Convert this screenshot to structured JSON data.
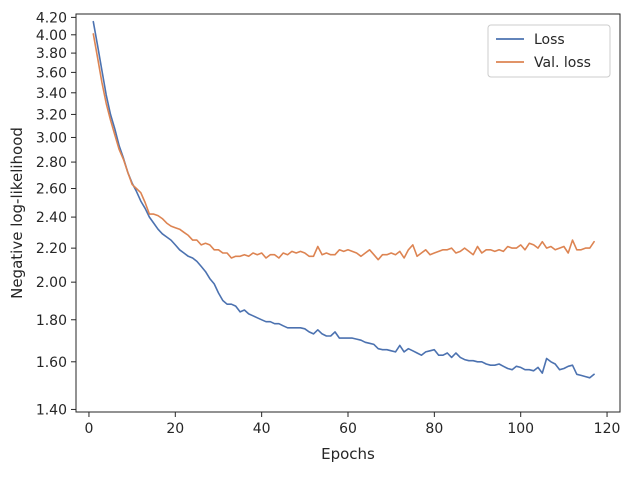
{
  "chart_data": {
    "type": "line",
    "title": "",
    "xlabel": "Epochs",
    "ylabel": "Negative log-likelihood",
    "xlim": [
      -3,
      123
    ],
    "ylim": [
      1.39,
      4.24
    ],
    "y_scale": "log",
    "grid": false,
    "legend_position": "top-right",
    "xticks": [
      0,
      20,
      40,
      60,
      80,
      100,
      120
    ],
    "xtick_labels": [
      "0",
      "20",
      "40",
      "60",
      "80",
      "100",
      "120"
    ],
    "yticks": [
      1.4,
      1.6,
      1.8,
      2.0,
      2.2,
      2.4,
      2.6,
      2.8,
      3.0,
      3.2,
      3.4,
      3.6,
      3.8,
      4.0,
      4.2
    ],
    "ytick_labels": [
      "1.40",
      "1.60",
      "1.80",
      "2.00",
      "2.20",
      "2.40",
      "2.60",
      "2.80",
      "3.00",
      "3.20",
      "3.40",
      "3.60",
      "3.80",
      "4.00",
      "4.20"
    ],
    "x": [
      1,
      2,
      3,
      4,
      5,
      6,
      7,
      8,
      9,
      10,
      11,
      12,
      13,
      14,
      15,
      16,
      17,
      18,
      19,
      20,
      21,
      22,
      23,
      24,
      25,
      26,
      27,
      28,
      29,
      30,
      31,
      32,
      33,
      34,
      35,
      36,
      37,
      38,
      39,
      40,
      41,
      42,
      43,
      44,
      45,
      46,
      47,
      48,
      49,
      50,
      51,
      52,
      53,
      54,
      55,
      56,
      57,
      58,
      59,
      60,
      61,
      62,
      63,
      64,
      65,
      66,
      67,
      68,
      69,
      70,
      71,
      72,
      73,
      74,
      75,
      76,
      77,
      78,
      79,
      80,
      81,
      82,
      83,
      84,
      85,
      86,
      87,
      88,
      89,
      90,
      91,
      92,
      93,
      94,
      95,
      96,
      97,
      98,
      99,
      100,
      101,
      102,
      103,
      104,
      105,
      106,
      107,
      108,
      109,
      110,
      111,
      112,
      113,
      114,
      115,
      116,
      117
    ],
    "series": [
      {
        "name": "Loss",
        "color": "#4c72b0",
        "values": [
          4.15,
          3.88,
          3.62,
          3.38,
          3.2,
          3.07,
          2.93,
          2.83,
          2.72,
          2.64,
          2.58,
          2.51,
          2.46,
          2.4,
          2.36,
          2.32,
          2.29,
          2.27,
          2.25,
          2.22,
          2.19,
          2.17,
          2.15,
          2.14,
          2.12,
          2.09,
          2.06,
          2.02,
          1.99,
          1.94,
          1.9,
          1.88,
          1.88,
          1.87,
          1.84,
          1.85,
          1.83,
          1.82,
          1.81,
          1.8,
          1.79,
          1.79,
          1.78,
          1.78,
          1.77,
          1.76,
          1.76,
          1.76,
          1.76,
          1.755,
          1.74,
          1.73,
          1.75,
          1.73,
          1.72,
          1.72,
          1.74,
          1.71,
          1.71,
          1.71,
          1.71,
          1.705,
          1.7,
          1.69,
          1.685,
          1.68,
          1.66,
          1.655,
          1.655,
          1.65,
          1.645,
          1.675,
          1.645,
          1.66,
          1.65,
          1.64,
          1.63,
          1.645,
          1.65,
          1.655,
          1.63,
          1.63,
          1.64,
          1.62,
          1.64,
          1.62,
          1.61,
          1.605,
          1.605,
          1.6,
          1.6,
          1.59,
          1.585,
          1.585,
          1.59,
          1.58,
          1.57,
          1.565,
          1.58,
          1.575,
          1.565,
          1.565,
          1.56,
          1.575,
          1.55,
          1.615,
          1.6,
          1.59,
          1.565,
          1.57,
          1.58,
          1.585,
          1.545,
          1.54,
          1.535,
          1.53,
          1.545
        ]
      },
      {
        "name": "Val. loss",
        "color": "#dd8452",
        "values": [
          4.01,
          3.75,
          3.5,
          3.3,
          3.15,
          3.02,
          2.9,
          2.82,
          2.72,
          2.63,
          2.6,
          2.57,
          2.5,
          2.42,
          2.42,
          2.41,
          2.39,
          2.36,
          2.34,
          2.33,
          2.32,
          2.3,
          2.28,
          2.25,
          2.25,
          2.22,
          2.23,
          2.22,
          2.19,
          2.19,
          2.17,
          2.17,
          2.14,
          2.15,
          2.15,
          2.16,
          2.15,
          2.17,
          2.16,
          2.17,
          2.14,
          2.16,
          2.16,
          2.14,
          2.17,
          2.16,
          2.18,
          2.17,
          2.18,
          2.17,
          2.15,
          2.15,
          2.21,
          2.16,
          2.17,
          2.16,
          2.16,
          2.19,
          2.18,
          2.19,
          2.18,
          2.17,
          2.15,
          2.17,
          2.19,
          2.16,
          2.13,
          2.16,
          2.16,
          2.17,
          2.16,
          2.18,
          2.14,
          2.19,
          2.22,
          2.15,
          2.17,
          2.19,
          2.16,
          2.17,
          2.18,
          2.19,
          2.19,
          2.2,
          2.17,
          2.18,
          2.2,
          2.18,
          2.16,
          2.21,
          2.17,
          2.19,
          2.19,
          2.18,
          2.19,
          2.18,
          2.21,
          2.2,
          2.2,
          2.22,
          2.19,
          2.23,
          2.22,
          2.2,
          2.24,
          2.2,
          2.21,
          2.19,
          2.2,
          2.21,
          2.17,
          2.25,
          2.19,
          2.19,
          2.2,
          2.2,
          2.24
        ]
      }
    ]
  }
}
